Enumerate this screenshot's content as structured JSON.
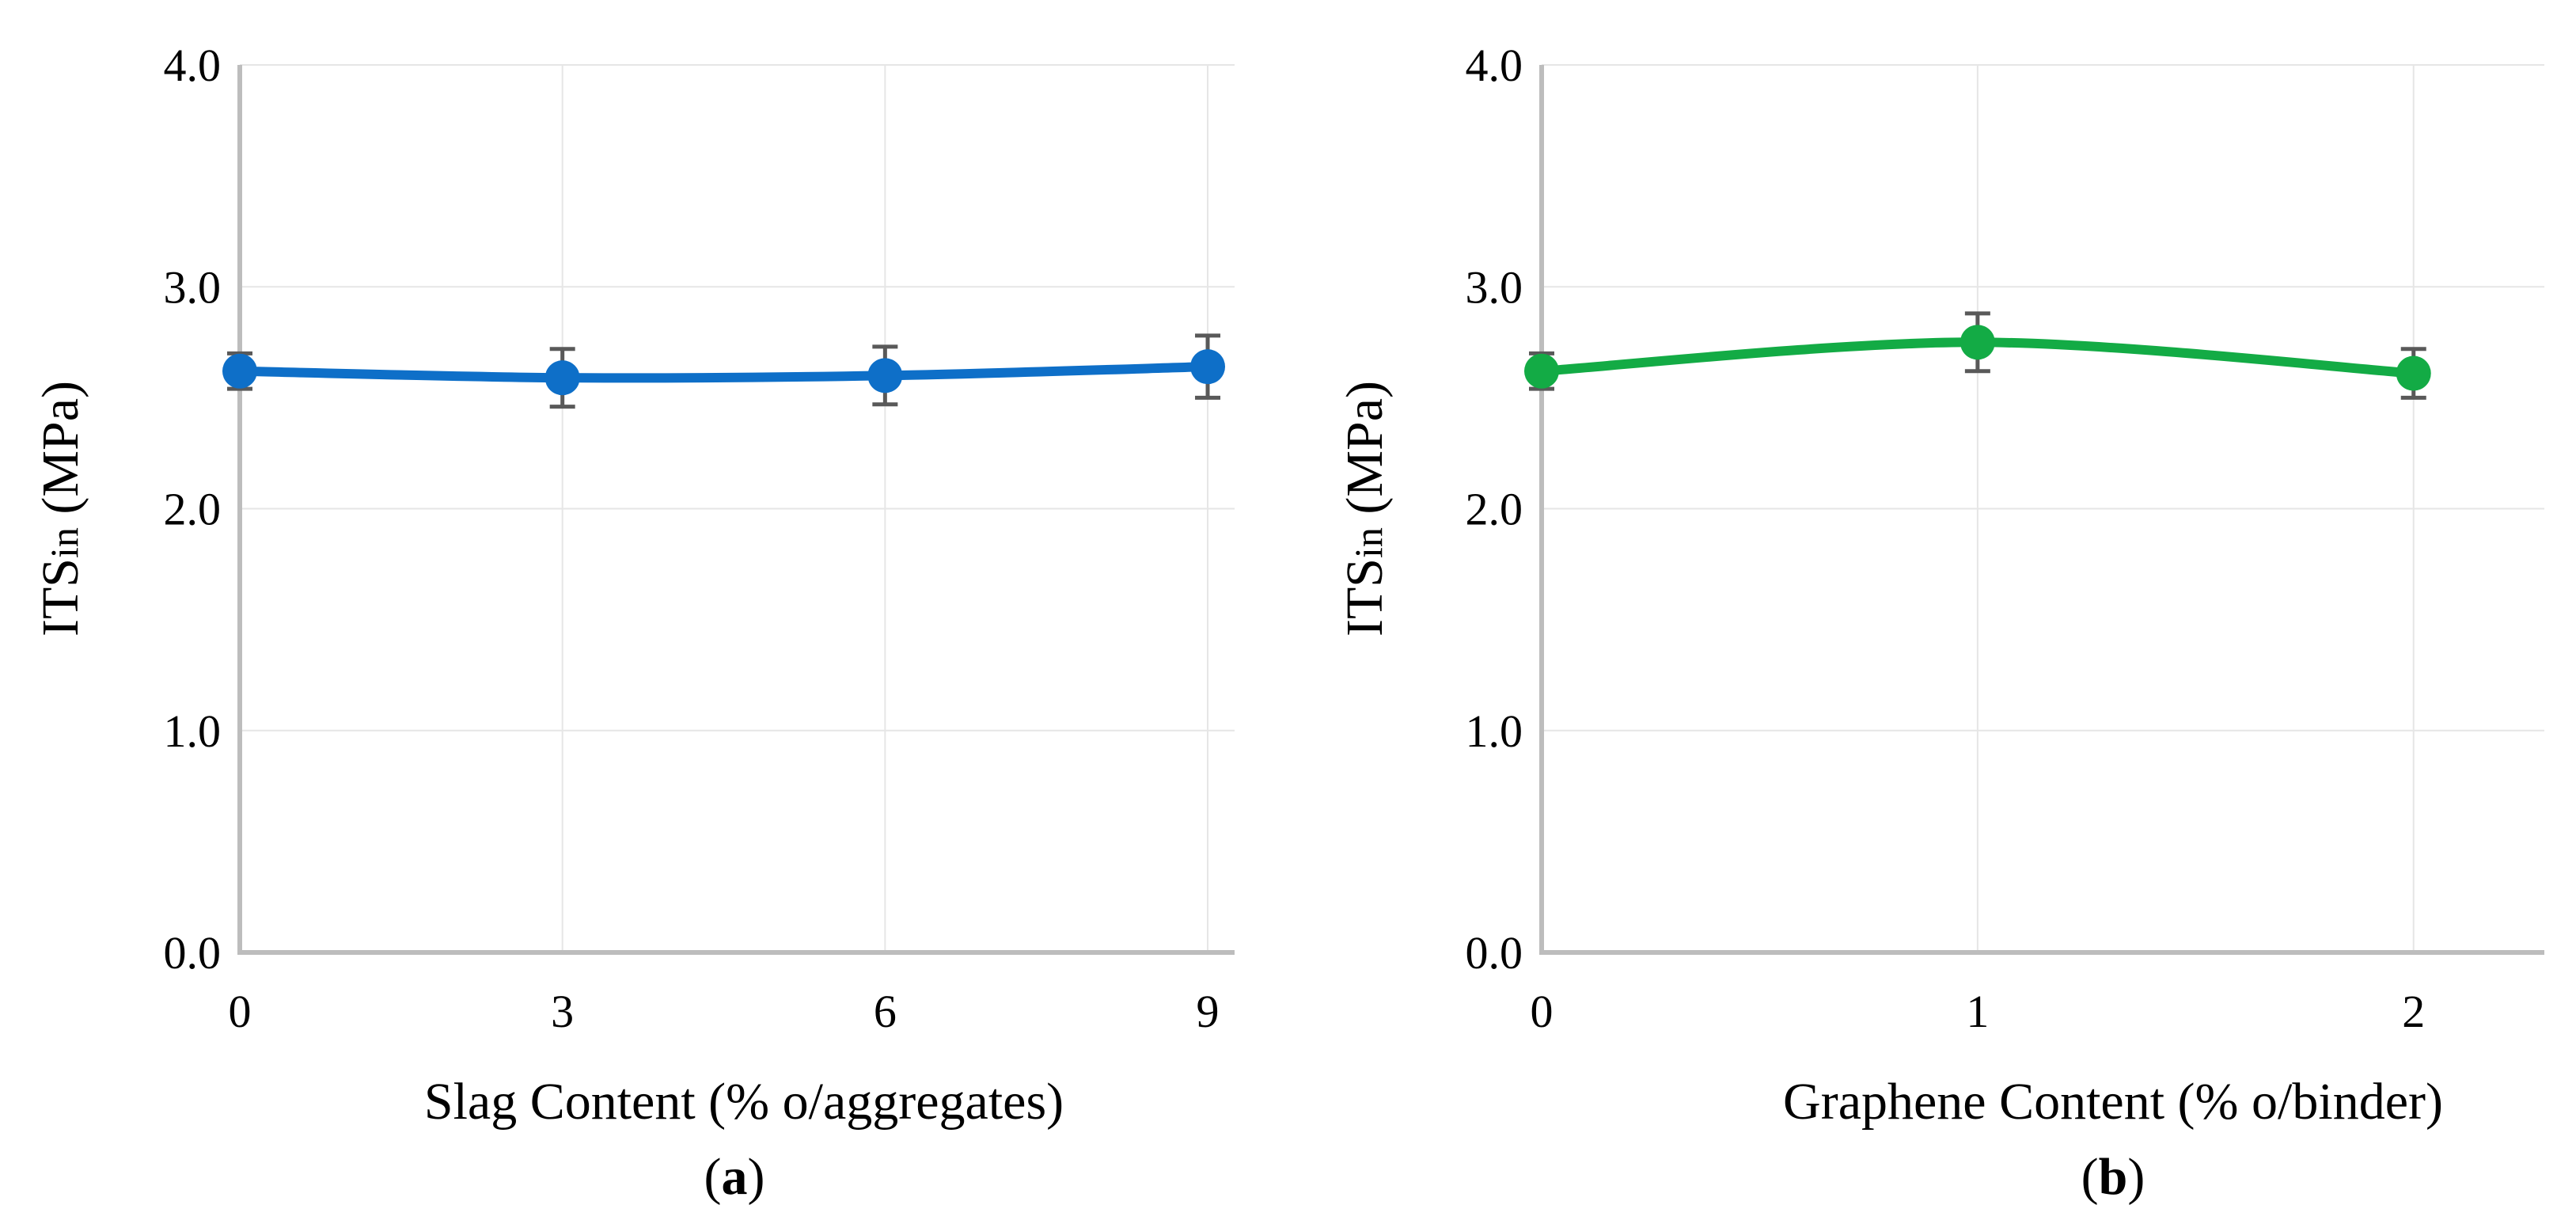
{
  "chart_data": [
    {
      "id": "a",
      "type": "line",
      "panel_label": "a",
      "xlabel": "Slag Content (% o/aggregates)",
      "ylabel_main": "ITS",
      "ylabel_sub": "in",
      "ylabel_unit": "(MPa)",
      "x": [
        0,
        3,
        6,
        9
      ],
      "x_tick_labels": [
        "0",
        "3",
        "6",
        "9"
      ],
      "xlim": [
        0,
        9.25
      ],
      "ylim": [
        0,
        4
      ],
      "y_ticks": [
        0,
        1,
        2,
        3,
        4
      ],
      "y_tick_labels": [
        "0.0",
        "1.0",
        "2.0",
        "3.0",
        "4.0"
      ],
      "series": [
        {
          "name": "ITSin",
          "values": [
            2.62,
            2.59,
            2.6,
            2.64
          ],
          "error": [
            0.08,
            0.13,
            0.13,
            0.14
          ],
          "color": "#0e6fc8"
        }
      ],
      "grid": true,
      "smooth": true
    },
    {
      "id": "b",
      "type": "line",
      "panel_label": "b",
      "xlabel": "Graphene Content (% o/binder)",
      "ylabel_main": "ITS",
      "ylabel_sub": "in",
      "ylabel_unit": "(MPa)",
      "x": [
        0,
        1,
        2
      ],
      "x_tick_labels": [
        "0",
        "1",
        "2"
      ],
      "xlim": [
        0,
        2.3
      ],
      "ylim": [
        0,
        4
      ],
      "y_ticks": [
        0,
        1,
        2,
        3,
        4
      ],
      "y_tick_labels": [
        "0.0",
        "1.0",
        "2.0",
        "3.0",
        "4.0"
      ],
      "series": [
        {
          "name": "ITSin",
          "values": [
            2.62,
            2.75,
            2.61
          ],
          "error": [
            0.08,
            0.13,
            0.11
          ],
          "color": "#13ab45"
        }
      ],
      "grid": true,
      "smooth": true
    }
  ]
}
